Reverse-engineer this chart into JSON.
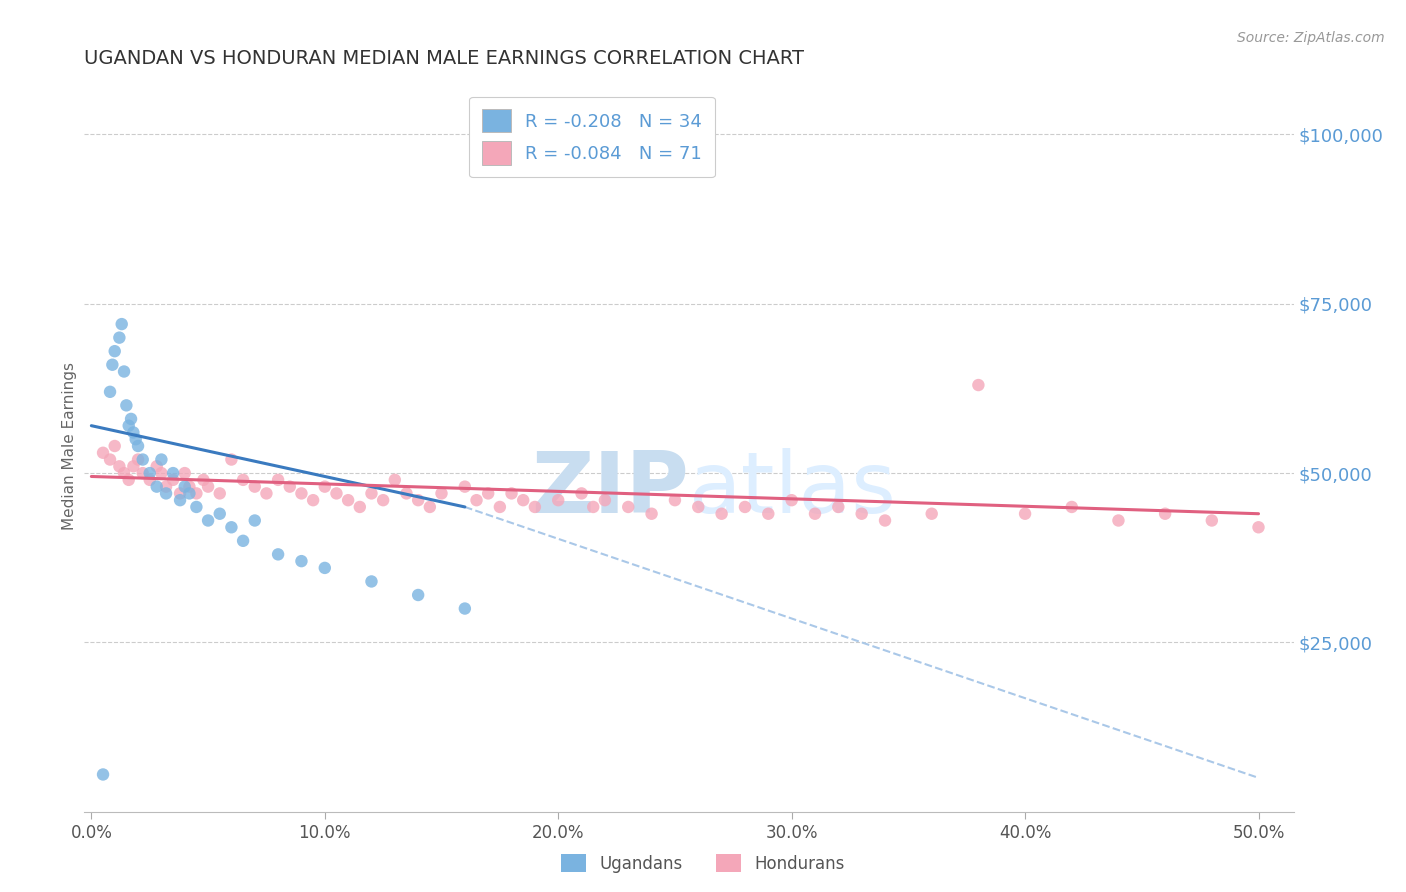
{
  "title": "UGANDAN VS HONDURAN MEDIAN MALE EARNINGS CORRELATION CHART",
  "source": "Source: ZipAtlas.com",
  "xlabel_ticks": [
    "0.0%",
    "10.0%",
    "20.0%",
    "30.0%",
    "40.0%",
    "50.0%"
  ],
  "xlabel_vals": [
    0.0,
    0.1,
    0.2,
    0.3,
    0.4,
    0.5
  ],
  "ylabel": "Median Male Earnings",
  "yticks": [
    0,
    25000,
    50000,
    75000,
    100000
  ],
  "ytick_labels": [
    "",
    "$25,000",
    "$50,000",
    "$75,000",
    "$100,000"
  ],
  "ylim": [
    0,
    108000
  ],
  "xlim": [
    -0.003,
    0.515
  ],
  "background_color": "#ffffff",
  "grid_color": "#cccccc",
  "title_color": "#333333",
  "axis_label_color": "#666666",
  "right_tick_color": "#5b9bd5",
  "watermark_color": "#dce8f5",
  "ugandan_color": "#7ab3e0",
  "honduran_color": "#f4a7b9",
  "ugandan_line_color": "#3a7abf",
  "honduran_line_color": "#e06080",
  "dashed_line_color": "#aac8e8",
  "R_ugandan": -0.208,
  "N_ugandan": 34,
  "R_honduran": -0.084,
  "N_honduran": 71,
  "ugandan_x": [
    0.005,
    0.008,
    0.009,
    0.01,
    0.012,
    0.013,
    0.014,
    0.015,
    0.016,
    0.017,
    0.018,
    0.019,
    0.02,
    0.022,
    0.025,
    0.028,
    0.03,
    0.032,
    0.035,
    0.038,
    0.04,
    0.042,
    0.045,
    0.05,
    0.055,
    0.06,
    0.065,
    0.07,
    0.08,
    0.09,
    0.1,
    0.12,
    0.14,
    0.16
  ],
  "ugandan_y": [
    5500,
    62000,
    66000,
    68000,
    70000,
    72000,
    65000,
    60000,
    57000,
    58000,
    56000,
    55000,
    54000,
    52000,
    50000,
    48000,
    52000,
    47000,
    50000,
    46000,
    48000,
    47000,
    45000,
    43000,
    44000,
    42000,
    40000,
    43000,
    38000,
    37000,
    36000,
    34000,
    32000,
    30000
  ],
  "honduran_x": [
    0.005,
    0.008,
    0.01,
    0.012,
    0.014,
    0.016,
    0.018,
    0.02,
    0.022,
    0.025,
    0.028,
    0.03,
    0.032,
    0.035,
    0.038,
    0.04,
    0.042,
    0.045,
    0.048,
    0.05,
    0.055,
    0.06,
    0.065,
    0.07,
    0.075,
    0.08,
    0.085,
    0.09,
    0.095,
    0.1,
    0.105,
    0.11,
    0.115,
    0.12,
    0.125,
    0.13,
    0.135,
    0.14,
    0.145,
    0.15,
    0.16,
    0.165,
    0.17,
    0.175,
    0.18,
    0.185,
    0.19,
    0.2,
    0.21,
    0.215,
    0.22,
    0.23,
    0.24,
    0.25,
    0.26,
    0.27,
    0.28,
    0.29,
    0.3,
    0.31,
    0.32,
    0.33,
    0.34,
    0.36,
    0.38,
    0.4,
    0.42,
    0.44,
    0.46,
    0.48,
    0.5
  ],
  "honduran_y": [
    53000,
    52000,
    54000,
    51000,
    50000,
    49000,
    51000,
    52000,
    50000,
    49000,
    51000,
    50000,
    48000,
    49000,
    47000,
    50000,
    48000,
    47000,
    49000,
    48000,
    47000,
    52000,
    49000,
    48000,
    47000,
    49000,
    48000,
    47000,
    46000,
    48000,
    47000,
    46000,
    45000,
    47000,
    46000,
    49000,
    47000,
    46000,
    45000,
    47000,
    48000,
    46000,
    47000,
    45000,
    47000,
    46000,
    45000,
    46000,
    47000,
    45000,
    46000,
    45000,
    44000,
    46000,
    45000,
    44000,
    45000,
    44000,
    46000,
    44000,
    45000,
    44000,
    43000,
    44000,
    63000,
    44000,
    45000,
    43000,
    44000,
    43000,
    42000
  ],
  "ugandan_line_x0": 0.0,
  "ugandan_line_y0": 57000,
  "ugandan_line_x1": 0.16,
  "ugandan_line_y1": 45000,
  "dashed_line_x0": 0.16,
  "dashed_line_y0": 45000,
  "dashed_line_x1": 0.5,
  "dashed_line_y1": 5000,
  "honduran_line_x0": 0.0,
  "honduran_line_y0": 49500,
  "honduran_line_x1": 0.5,
  "honduran_line_y1": 44000
}
